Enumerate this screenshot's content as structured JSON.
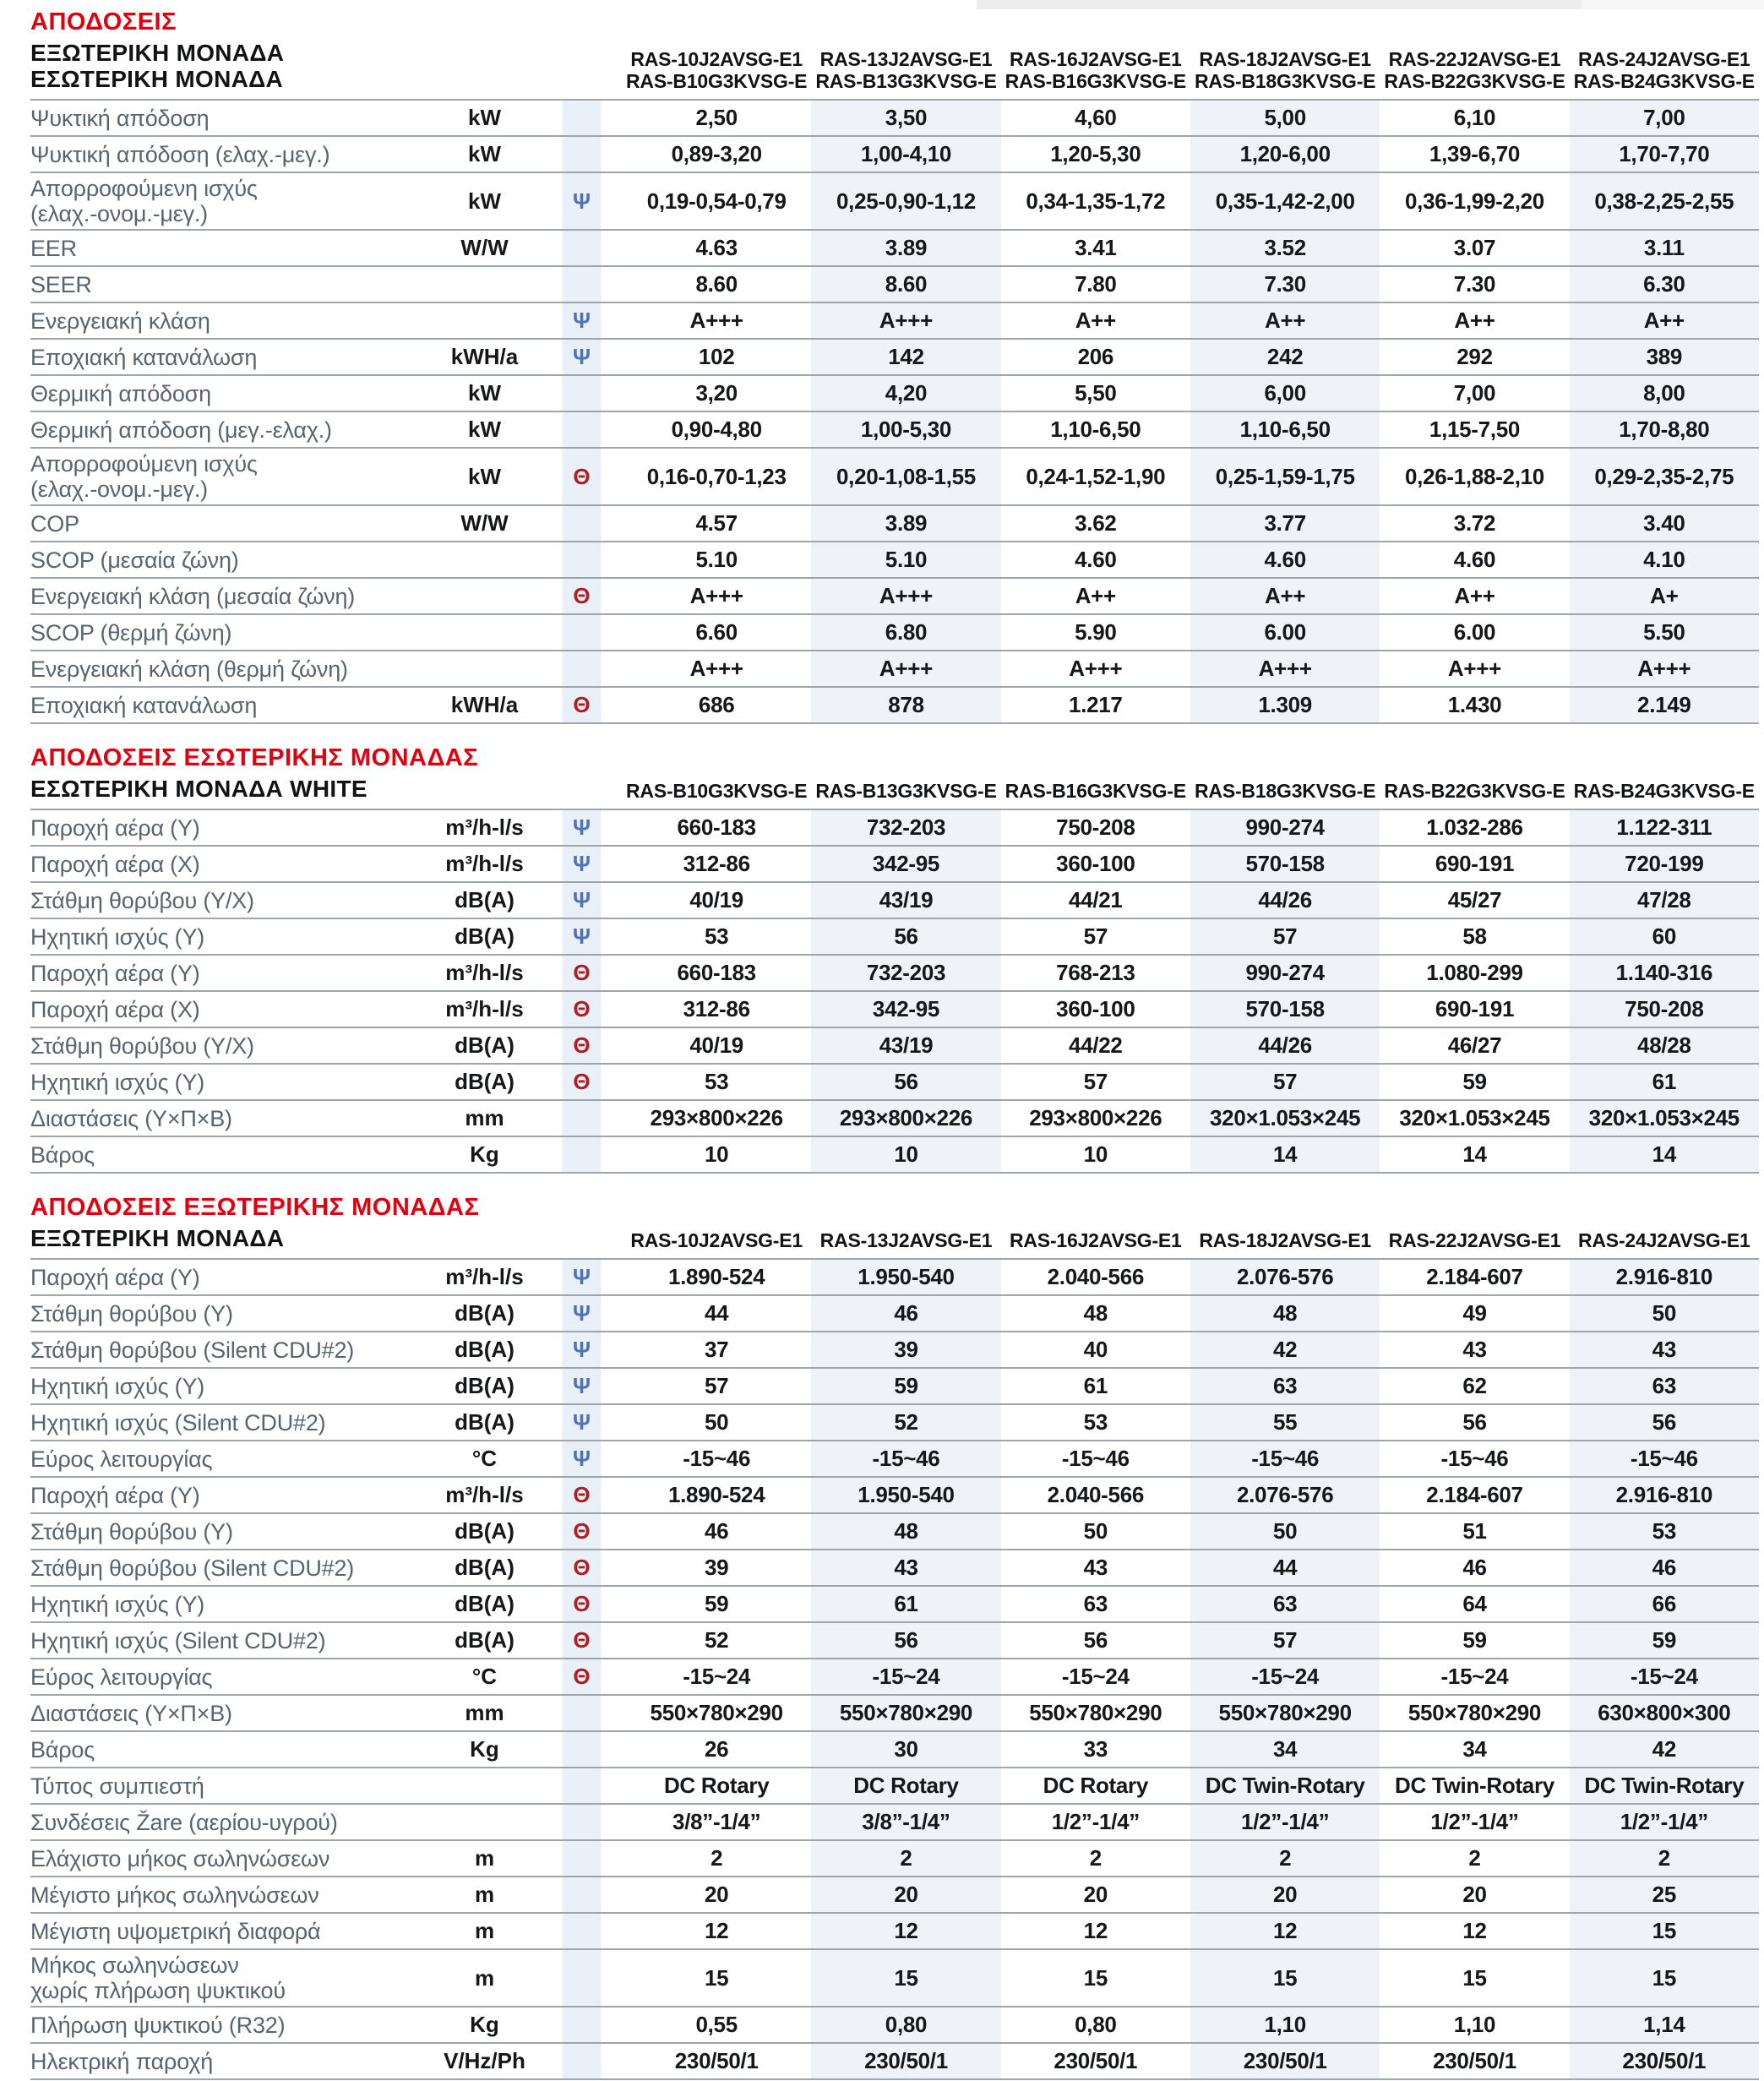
{
  "legend": {
    "cooling_symbol": "Ψ",
    "heating_symbol": "Θ",
    "cooling_color": "#4e73b9",
    "heating_color": "#ae1f23",
    "title_color": "#e2000f"
  },
  "tables": [
    {
      "id": "performance",
      "title": "ΑΠΟΔΟΣΕΙΣ",
      "subtitle_lines": [
        "ΕΞΩΤΕΡΙΚΗ ΜΟΝΑΔΑ",
        "ΕΣΩΤΕΡΙΚΗ ΜΟΝΑΔΑ"
      ],
      "models": [
        {
          "lines": [
            "RAS-10J2AVSG-E1",
            "RAS-B10G3KVSG-E"
          ]
        },
        {
          "lines": [
            "RAS-13J2AVSG-E1",
            "RAS-B13G3KVSG-E"
          ]
        },
        {
          "lines": [
            "RAS-16J2AVSG-E1",
            "RAS-B16G3KVSG-E"
          ]
        },
        {
          "lines": [
            "RAS-18J2AVSG-E1",
            "RAS-B18G3KVSG-E"
          ]
        },
        {
          "lines": [
            "RAS-22J2AVSG-E1",
            "RAS-B22G3KVSG-E"
          ]
        },
        {
          "lines": [
            "RAS-24J2AVSG-E1",
            "RAS-B24G3KVSG-E"
          ]
        }
      ],
      "rows": [
        {
          "label": "Ψυκτική απόδοση",
          "unit": "kW",
          "values": [
            "2,50",
            "3,50",
            "4,60",
            "5,00",
            "6,10",
            "7,00"
          ]
        },
        {
          "label": "Ψυκτική απόδοση (ελαχ.-μεγ.)",
          "unit": "kW",
          "values": [
            "0,89-3,20",
            "1,00-4,10",
            "1,20-5,30",
            "1,20-6,00",
            "1,39-6,70",
            "1,70-7,70"
          ]
        },
        {
          "label": "Απορροφούμενη ισχύς\n(ελαχ.-ονομ.-μεγ.)",
          "unit": "kW",
          "sym": "Ψ",
          "mode": "cooling",
          "values": [
            "0,19-0,54-0,79",
            "0,25-0,90-1,12",
            "0,34-1,35-1,72",
            "0,35-1,42-2,00",
            "0,36-1,99-2,20",
            "0,38-2,25-2,55"
          ]
        },
        {
          "label": "EER",
          "unit": "W/W",
          "values": [
            "4.63",
            "3.89",
            "3.41",
            "3.52",
            "3.07",
            "3.11"
          ]
        },
        {
          "label": "SEER",
          "unit": "",
          "values": [
            "8.60",
            "8.60",
            "7.80",
            "7.30",
            "7.30",
            "6.30"
          ]
        },
        {
          "label": "Ενεργειακή κλάση",
          "unit": "",
          "sym": "Ψ",
          "mode": "cooling",
          "values": [
            "A+++",
            "A+++",
            "A++",
            "A++",
            "A++",
            "A++"
          ]
        },
        {
          "label": "Εποχιακή κατανάλωση",
          "unit": "kWH/a",
          "sym": "Ψ",
          "mode": "cooling",
          "values": [
            "102",
            "142",
            "206",
            "242",
            "292",
            "389"
          ]
        },
        {
          "label": "Θερμική απόδοση",
          "unit": "kW",
          "values": [
            "3,20",
            "4,20",
            "5,50",
            "6,00",
            "7,00",
            "8,00"
          ]
        },
        {
          "label": "Θερμική απόδοση (μεγ.-ελαχ.)",
          "unit": "kW",
          "values": [
            "0,90-4,80",
            "1,00-5,30",
            "1,10-6,50",
            "1,10-6,50",
            "1,15-7,50",
            "1,70-8,80"
          ]
        },
        {
          "label": "Απορροφούμενη ισχύς\n(ελαχ.-ονομ.-μεγ.)",
          "unit": "kW",
          "sym": "Θ",
          "mode": "heating",
          "values": [
            "0,16-0,70-1,23",
            "0,20-1,08-1,55",
            "0,24-1,52-1,90",
            "0,25-1,59-1,75",
            "0,26-1,88-2,10",
            "0,29-2,35-2,75"
          ]
        },
        {
          "label": "COP",
          "unit": "W/W",
          "values": [
            "4.57",
            "3.89",
            "3.62",
            "3.77",
            "3.72",
            "3.40"
          ]
        },
        {
          "label": "SCOP (μεσαία ζώνη)",
          "unit": "",
          "values": [
            "5.10",
            "5.10",
            "4.60",
            "4.60",
            "4.60",
            "4.10"
          ]
        },
        {
          "label": "Ενεργειακή κλάση (μεσαία ζώνη)",
          "unit": "",
          "sym": "Θ",
          "mode": "heating",
          "values": [
            "A+++",
            "A+++",
            "A++",
            "A++",
            "A++",
            "A+"
          ]
        },
        {
          "label": "SCOP (θερμή ζώνη)",
          "unit": "",
          "values": [
            "6.60",
            "6.80",
            "5.90",
            "6.00",
            "6.00",
            "5.50"
          ]
        },
        {
          "label": "Ενεργειακή κλάση (θερμή ζώνη)",
          "unit": "",
          "values": [
            "A+++",
            "A+++",
            "A+++",
            "A+++",
            "A+++",
            "A+++"
          ]
        },
        {
          "label": "Εποχιακή κατανάλωση",
          "unit": "kWH/a",
          "sym": "Θ",
          "mode": "heating",
          "values": [
            "686",
            "878",
            "1.217",
            "1.309",
            "1.430",
            "2.149"
          ]
        }
      ]
    },
    {
      "id": "indoor-unit",
      "title": "ΑΠΟΔΟΣΕΙΣ ΕΣΩΤΕΡΙΚΗΣ ΜΟΝΑΔΑΣ",
      "subtitle_lines": [
        "ΕΣΩΤΕΡΙΚΗ ΜΟΝΑΔΑ WHITE"
      ],
      "models": [
        {
          "lines": [
            "RAS-B10G3KVSG-E"
          ]
        },
        {
          "lines": [
            "RAS-B13G3KVSG-E"
          ]
        },
        {
          "lines": [
            "RAS-B16G3KVSG-E"
          ]
        },
        {
          "lines": [
            "RAS-B18G3KVSG-E"
          ]
        },
        {
          "lines": [
            "RAS-B22G3KVSG-E"
          ]
        },
        {
          "lines": [
            "RAS-B24G3KVSG-E"
          ]
        }
      ],
      "rows": [
        {
          "label": "Παροχή αέρα (Y)",
          "unit": "m³/h-l/s",
          "sym": "Ψ",
          "mode": "cooling",
          "values": [
            "660-183",
            "732-203",
            "750-208",
            "990-274",
            "1.032-286",
            "1.122-311"
          ]
        },
        {
          "label": "Παροχή αέρα (X)",
          "unit": "m³/h-l/s",
          "sym": "Ψ",
          "mode": "cooling",
          "values": [
            "312-86",
            "342-95",
            "360-100",
            "570-158",
            "690-191",
            "720-199"
          ]
        },
        {
          "label": "Στάθμη θορύβου (Y/X)",
          "unit": "dB(A)",
          "sym": "Ψ",
          "mode": "cooling",
          "values": [
            "40/19",
            "43/19",
            "44/21",
            "44/26",
            "45/27",
            "47/28"
          ]
        },
        {
          "label": "Ηχητική ισχύς (Y)",
          "unit": "dB(A)",
          "sym": "Ψ",
          "mode": "cooling",
          "values": [
            "53",
            "56",
            "57",
            "57",
            "58",
            "60"
          ]
        },
        {
          "label": "Παροχή αέρα (Y)",
          "unit": "m³/h-l/s",
          "sym": "Θ",
          "mode": "heating",
          "values": [
            "660-183",
            "732-203",
            "768-213",
            "990-274",
            "1.080-299",
            "1.140-316"
          ]
        },
        {
          "label": "Παροχή αέρα (X)",
          "unit": "m³/h-l/s",
          "sym": "Θ",
          "mode": "heating",
          "values": [
            "312-86",
            "342-95",
            "360-100",
            "570-158",
            "690-191",
            "750-208"
          ]
        },
        {
          "label": "Στάθμη θορύβου (Y/X)",
          "unit": "dB(A)",
          "sym": "Θ",
          "mode": "heating",
          "values": [
            "40/19",
            "43/19",
            "44/22",
            "44/26",
            "46/27",
            "48/28"
          ]
        },
        {
          "label": "Ηχητική ισχύς (Y)",
          "unit": "dB(A)",
          "sym": "Θ",
          "mode": "heating",
          "values": [
            "53",
            "56",
            "57",
            "57",
            "59",
            "61"
          ]
        },
        {
          "label": "Διαστάσεις (Y×Π×Β)",
          "unit": "mm",
          "values": [
            "293×800×226",
            "293×800×226",
            "293×800×226",
            "320×1.053×245",
            "320×1.053×245",
            "320×1.053×245"
          ]
        },
        {
          "label": "Βάρος",
          "unit": "Kg",
          "values": [
            "10",
            "10",
            "10",
            "14",
            "14",
            "14"
          ]
        }
      ]
    },
    {
      "id": "outdoor-unit",
      "title": "ΑΠΟΔΟΣΕΙΣ ΕΞΩΤΕΡΙΚΗΣ ΜΟΝΑΔΑΣ",
      "subtitle_lines": [
        "ΕΞΩΤΕΡΙΚΗ ΜΟΝΑΔΑ"
      ],
      "models": [
        {
          "lines": [
            "RAS-10J2AVSG-E1"
          ]
        },
        {
          "lines": [
            "RAS-13J2AVSG-E1"
          ]
        },
        {
          "lines": [
            "RAS-16J2AVSG-E1"
          ]
        },
        {
          "lines": [
            "RAS-18J2AVSG-E1"
          ]
        },
        {
          "lines": [
            "RAS-22J2AVSG-E1"
          ]
        },
        {
          "lines": [
            "RAS-24J2AVSG-E1"
          ]
        }
      ],
      "rows": [
        {
          "label": "Παροχή αέρα (Y)",
          "unit": "m³/h-l/s",
          "sym": "Ψ",
          "mode": "cooling",
          "values": [
            "1.890-524",
            "1.950-540",
            "2.040-566",
            "2.076-576",
            "2.184-607",
            "2.916-810"
          ]
        },
        {
          "label": "Στάθμη θορύβου (Y)",
          "unit": "dB(A)",
          "sym": "Ψ",
          "mode": "cooling",
          "values": [
            "44",
            "46",
            "48",
            "48",
            "49",
            "50"
          ]
        },
        {
          "label": "Στάθμη θορύβου (Silent CDU#2)",
          "unit": "dB(A)",
          "sym": "Ψ",
          "mode": "cooling",
          "values": [
            "37",
            "39",
            "40",
            "42",
            "43",
            "43"
          ]
        },
        {
          "label": "Ηχητική ισχύς (Y)",
          "unit": "dB(A)",
          "sym": "Ψ",
          "mode": "cooling",
          "values": [
            "57",
            "59",
            "61",
            "63",
            "62",
            "63"
          ]
        },
        {
          "label": "Ηχητική ισχύς (Silent CDU#2)",
          "unit": "dB(A)",
          "sym": "Ψ",
          "mode": "cooling",
          "values": [
            "50",
            "52",
            "53",
            "55",
            "56",
            "56"
          ]
        },
        {
          "label": "Εύρος λειτουργίας",
          "unit": "°C",
          "sym": "Ψ",
          "mode": "cooling",
          "values": [
            "-15~46",
            "-15~46",
            "-15~46",
            "-15~46",
            "-15~46",
            "-15~46"
          ]
        },
        {
          "label": "Παροχή αέρα (Y)",
          "unit": "m³/h-l/s",
          "sym": "Θ",
          "mode": "heating",
          "values": [
            "1.890-524",
            "1.950-540",
            "2.040-566",
            "2.076-576",
            "2.184-607",
            "2.916-810"
          ]
        },
        {
          "label": "Στάθμη θορύβου (Y)",
          "unit": "dB(A)",
          "sym": "Θ",
          "mode": "heating",
          "values": [
            "46",
            "48",
            "50",
            "50",
            "51",
            "53"
          ]
        },
        {
          "label": "Στάθμη θορύβου (Silent CDU#2)",
          "unit": "dB(A)",
          "sym": "Θ",
          "mode": "heating",
          "values": [
            "39",
            "43",
            "43",
            "44",
            "46",
            "46"
          ]
        },
        {
          "label": "Ηχητική ισχύς (Y)",
          "unit": "dB(A)",
          "sym": "Θ",
          "mode": "heating",
          "values": [
            "59",
            "61",
            "63",
            "63",
            "64",
            "66"
          ]
        },
        {
          "label": "Ηχητική ισχύς (Silent CDU#2)",
          "unit": "dB(A)",
          "sym": "Θ",
          "mode": "heating",
          "values": [
            "52",
            "56",
            "56",
            "57",
            "59",
            "59"
          ]
        },
        {
          "label": "Εύρος λειτουργίας",
          "unit": "°C",
          "sym": "Θ",
          "mode": "heating",
          "values": [
            "-15~24",
            "-15~24",
            "-15~24",
            "-15~24",
            "-15~24",
            "-15~24"
          ]
        },
        {
          "label": "Διαστάσεις (Y×Π×Β)",
          "unit": "mm",
          "values": [
            "550×780×290",
            "550×780×290",
            "550×780×290",
            "550×780×290",
            "550×780×290",
            "630×800×300"
          ]
        },
        {
          "label": "Βάρος",
          "unit": "Kg",
          "values": [
            "26",
            "30",
            "33",
            "34",
            "34",
            "42"
          ]
        },
        {
          "label": "Τύπος συμπιεστή",
          "unit": "",
          "values": [
            "DC Rotary",
            "DC Rotary",
            "DC Rotary",
            "DC Twin-Rotary",
            "DC Twin-Rotary",
            "DC Twin-Rotary"
          ]
        },
        {
          "label": "Συνδέσεις Žare (αερίου-υγρού)",
          "unit": "",
          "values": [
            "3/8”-1/4”",
            "3/8”-1/4”",
            "1/2”-1/4”",
            "1/2”-1/4”",
            "1/2”-1/4”",
            "1/2”-1/4”"
          ]
        },
        {
          "label": "Ελάχιστο μήκος σωληνώσεων",
          "unit": "m",
          "values": [
            "2",
            "2",
            "2",
            "2",
            "2",
            "2"
          ]
        },
        {
          "label": "Μέγιστο μήκος σωληνώσεων",
          "unit": "m",
          "values": [
            "20",
            "20",
            "20",
            "20",
            "20",
            "25"
          ]
        },
        {
          "label": "Μέγιστη υψομετρική διαφορά",
          "unit": "m",
          "values": [
            "12",
            "12",
            "12",
            "12",
            "12",
            "15"
          ]
        },
        {
          "label": "Μήκος σωληνώσεων\nχωρίς πλήρωση ψυκτικού",
          "unit": "m",
          "values": [
            "15",
            "15",
            "15",
            "15",
            "15",
            "15"
          ]
        },
        {
          "label": "Πλήρωση ψυκτικού (R32)",
          "unit": "Kg",
          "values": [
            "0,55",
            "0,80",
            "0,80",
            "1,10",
            "1,10",
            "1,14"
          ]
        },
        {
          "label": "Ηλεκτρική παροχή",
          "unit": "V/Hz/Ph",
          "values": [
            "230/50/1",
            "230/50/1",
            "230/50/1",
            "230/50/1",
            "230/50/1",
            "230/50/1"
          ]
        }
      ]
    }
  ]
}
